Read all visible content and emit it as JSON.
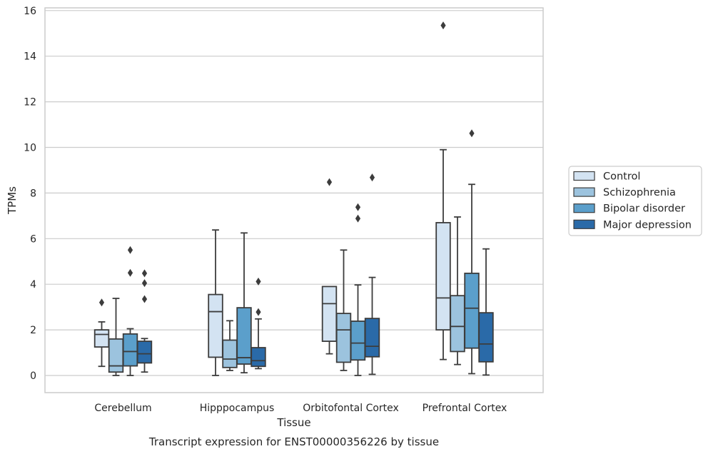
{
  "chart_data": {
    "type": "box",
    "xlabel": "Tissue",
    "ylabel": "TPMs",
    "caption": "Transcript expression for ENST00000356226 by tissue",
    "ylim": [
      -0.7,
      16.15
    ],
    "yticks": [
      0,
      2,
      4,
      6,
      8,
      10,
      12,
      14,
      16
    ],
    "grid": "horizontal",
    "legend_position": "right",
    "categories": [
      "Cerebellum",
      "Hipppocampus",
      "Orbitofontal Cortex",
      "Prefrontal Cortex"
    ],
    "series": [
      {
        "name": "Control",
        "color": "#d3e3f2",
        "boxes": [
          {
            "q1": 1.25,
            "median": 1.8,
            "q3": 2.0,
            "whisker_low": 0.4,
            "whisker_high": 2.35,
            "outliers": [
              3.2
            ]
          },
          {
            "q1": 0.8,
            "median": 2.8,
            "q3": 3.55,
            "whisker_low": 0.0,
            "whisker_high": 6.38,
            "outliers": []
          },
          {
            "q1": 1.5,
            "median": 3.15,
            "q3": 3.9,
            "whisker_low": 0.95,
            "whisker_high": 3.9,
            "outliers": [
              8.48
            ]
          },
          {
            "q1": 2.0,
            "median": 3.4,
            "q3": 6.7,
            "whisker_low": 0.7,
            "whisker_high": 9.9,
            "outliers": [
              15.35
            ]
          }
        ]
      },
      {
        "name": "Schizophrenia",
        "color": "#9cc3de",
        "boxes": [
          {
            "q1": 0.15,
            "median": 0.42,
            "q3": 1.6,
            "whisker_low": 0.0,
            "whisker_high": 3.38,
            "outliers": []
          },
          {
            "q1": 0.35,
            "median": 0.72,
            "q3": 1.55,
            "whisker_low": 0.22,
            "whisker_high": 2.4,
            "outliers": []
          },
          {
            "q1": 0.58,
            "median": 2.0,
            "q3": 2.72,
            "whisker_low": 0.22,
            "whisker_high": 5.5,
            "outliers": []
          },
          {
            "q1": 1.05,
            "median": 2.15,
            "q3": 3.5,
            "whisker_low": 0.48,
            "whisker_high": 6.95,
            "outliers": []
          }
        ]
      },
      {
        "name": "Bipolar disorder",
        "color": "#5b9fcb",
        "boxes": [
          {
            "q1": 0.42,
            "median": 1.05,
            "q3": 1.82,
            "whisker_low": 0.0,
            "whisker_high": 2.05,
            "outliers": [
              4.5,
              5.5
            ]
          },
          {
            "q1": 0.5,
            "median": 0.78,
            "q3": 2.97,
            "whisker_low": 0.12,
            "whisker_high": 6.25,
            "outliers": []
          },
          {
            "q1": 0.68,
            "median": 1.42,
            "q3": 2.38,
            "whisker_low": 0.0,
            "whisker_high": 3.97,
            "outliers": [
              6.88,
              7.38
            ]
          },
          {
            "q1": 1.2,
            "median": 2.95,
            "q3": 4.48,
            "whisker_low": 0.08,
            "whisker_high": 8.38,
            "outliers": [
              10.62
            ]
          }
        ]
      },
      {
        "name": "Major depression",
        "color": "#2a6aa8",
        "boxes": [
          {
            "q1": 0.55,
            "median": 0.95,
            "q3": 1.5,
            "whisker_low": 0.15,
            "whisker_high": 1.62,
            "outliers": [
              3.35,
              4.05,
              4.48
            ]
          },
          {
            "q1": 0.4,
            "median": 0.65,
            "q3": 1.22,
            "whisker_low": 0.3,
            "whisker_high": 2.48,
            "outliers": [
              2.78,
              4.12
            ]
          },
          {
            "q1": 0.82,
            "median": 1.28,
            "q3": 2.5,
            "whisker_low": 0.05,
            "whisker_high": 4.3,
            "outliers": [
              8.68
            ]
          },
          {
            "q1": 0.6,
            "median": 1.38,
            "q3": 2.75,
            "whisker_low": 0.02,
            "whisker_high": 5.55,
            "outliers": []
          }
        ]
      }
    ]
  }
}
